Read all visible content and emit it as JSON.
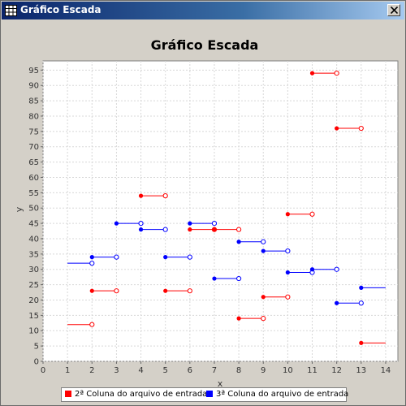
{
  "window": {
    "title": "Gráfico Escada"
  },
  "icons": {
    "app": "chart-grid-icon",
    "close": "close-icon"
  },
  "chart_data": {
    "type": "step-scatter",
    "title": "Gráfico Escada",
    "xlabel": "x",
    "ylabel": "y",
    "xlim": [
      0,
      14.5
    ],
    "ylim": [
      0,
      98
    ],
    "xticks": [
      0,
      1,
      2,
      3,
      4,
      5,
      6,
      7,
      8,
      9,
      10,
      11,
      12,
      13,
      14
    ],
    "yticks": [
      0,
      5,
      10,
      15,
      20,
      25,
      30,
      35,
      40,
      45,
      50,
      55,
      60,
      65,
      70,
      75,
      80,
      85,
      90,
      95
    ],
    "grid": true,
    "legend_position": "bottom",
    "series": [
      {
        "name": "2ª Coluna do arquivo de entrada",
        "color": "#ff0000",
        "steps": [
          {
            "x": 1,
            "y": 12,
            "start_marker": false,
            "end_marker": true
          },
          {
            "x": 2,
            "y": 23,
            "start_marker": true,
            "end_marker": true
          },
          {
            "x": 4,
            "y": 54,
            "start_marker": true,
            "end_marker": true
          },
          {
            "x": 5,
            "y": 23,
            "start_marker": true,
            "end_marker": true
          },
          {
            "x": 6,
            "y": 43,
            "start_marker": true,
            "end_marker": true
          },
          {
            "x": 7,
            "y": 43,
            "start_marker": true,
            "end_marker": true
          },
          {
            "x": 8,
            "y": 14,
            "start_marker": true,
            "end_marker": true
          },
          {
            "x": 9,
            "y": 21,
            "start_marker": true,
            "end_marker": true
          },
          {
            "x": 10,
            "y": 48,
            "start_marker": true,
            "end_marker": true
          },
          {
            "x": 11,
            "y": 94,
            "start_marker": true,
            "end_marker": true
          },
          {
            "x": 12,
            "y": 76,
            "start_marker": true,
            "end_marker": true
          },
          {
            "x": 13,
            "y": 6,
            "start_marker": true,
            "end_marker": false
          }
        ]
      },
      {
        "name": "3ª Coluna do arquivo de entrada",
        "color": "#0000ff",
        "steps": [
          {
            "x": 1,
            "y": 32,
            "start_marker": false,
            "end_marker": true
          },
          {
            "x": 2,
            "y": 34,
            "start_marker": true,
            "end_marker": true
          },
          {
            "x": 3,
            "y": 45,
            "start_marker": true,
            "end_marker": true
          },
          {
            "x": 4,
            "y": 43,
            "start_marker": true,
            "end_marker": true
          },
          {
            "x": 5,
            "y": 34,
            "start_marker": true,
            "end_marker": true
          },
          {
            "x": 6,
            "y": 45,
            "start_marker": true,
            "end_marker": true
          },
          {
            "x": 7,
            "y": 27,
            "start_marker": true,
            "end_marker": true
          },
          {
            "x": 8,
            "y": 39,
            "start_marker": true,
            "end_marker": true
          },
          {
            "x": 9,
            "y": 36,
            "start_marker": true,
            "end_marker": true
          },
          {
            "x": 10,
            "y": 29,
            "start_marker": true,
            "end_marker": true
          },
          {
            "x": 11,
            "y": 30,
            "start_marker": true,
            "end_marker": true
          },
          {
            "x": 12,
            "y": 19,
            "start_marker": true,
            "end_marker": true
          },
          {
            "x": 13,
            "y": 24,
            "start_marker": true,
            "end_marker": false
          }
        ]
      }
    ]
  }
}
